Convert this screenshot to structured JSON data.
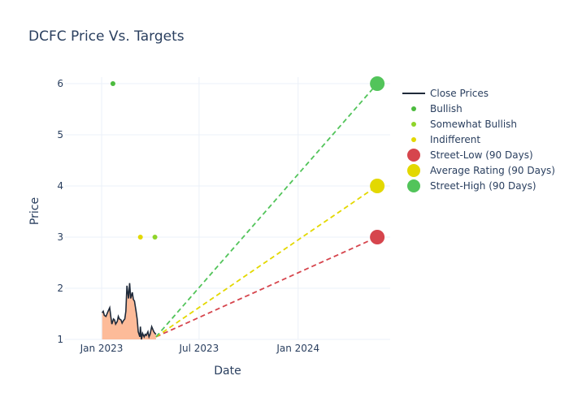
{
  "chart_data": {
    "type": "line+scatter",
    "title": "DCFC Price Vs. Targets",
    "xlabel": "Date",
    "ylabel": "Price",
    "ylim": [
      1,
      6
    ],
    "yticks": [
      1,
      2,
      3,
      4,
      5,
      6
    ],
    "xticks": [
      {
        "date": "2023-01-01",
        "label": "Jan 2023"
      },
      {
        "date": "2023-07-01",
        "label": "Jul 2023"
      },
      {
        "date": "2024-01-01",
        "label": "Jan 2024"
      }
    ],
    "xrange": [
      "2022-10-25",
      "2024-06-20"
    ],
    "close_prices": {
      "name": "Close Prices",
      "color": "#1f2a3a",
      "fill_color": "#fdbb99",
      "points": [
        [
          "2023-01-02",
          1.52
        ],
        [
          "2023-01-04",
          1.55
        ],
        [
          "2023-01-06",
          1.47
        ],
        [
          "2023-01-09",
          1.45
        ],
        [
          "2023-01-11",
          1.5
        ],
        [
          "2023-01-13",
          1.55
        ],
        [
          "2023-01-16",
          1.62
        ],
        [
          "2023-01-18",
          1.45
        ],
        [
          "2023-01-20",
          1.3
        ],
        [
          "2023-01-23",
          1.4
        ],
        [
          "2023-01-25",
          1.38
        ],
        [
          "2023-01-27",
          1.3
        ],
        [
          "2023-01-30",
          1.35
        ],
        [
          "2023-02-01",
          1.45
        ],
        [
          "2023-02-03",
          1.4
        ],
        [
          "2023-02-06",
          1.38
        ],
        [
          "2023-02-08",
          1.32
        ],
        [
          "2023-02-10",
          1.36
        ],
        [
          "2023-02-13",
          1.4
        ],
        [
          "2023-02-15",
          1.55
        ],
        [
          "2023-02-17",
          2.05
        ],
        [
          "2023-02-20",
          1.8
        ],
        [
          "2023-02-22",
          2.1
        ],
        [
          "2023-02-24",
          1.8
        ],
        [
          "2023-02-27",
          1.92
        ],
        [
          "2023-03-01",
          1.78
        ],
        [
          "2023-03-03",
          1.75
        ],
        [
          "2023-03-06",
          1.55
        ],
        [
          "2023-03-08",
          1.4
        ],
        [
          "2023-03-10",
          1.15
        ],
        [
          "2023-03-13",
          1.05
        ],
        [
          "2023-03-14",
          1.25
        ],
        [
          "2023-03-16",
          1.0
        ],
        [
          "2023-03-18",
          1.12
        ],
        [
          "2023-03-21",
          1.05
        ],
        [
          "2023-03-23",
          1.1
        ],
        [
          "2023-03-25",
          1.08
        ],
        [
          "2023-03-28",
          1.15
        ],
        [
          "2023-03-30",
          1.05
        ],
        [
          "2023-04-01",
          1.1
        ],
        [
          "2023-04-04",
          1.25
        ],
        [
          "2023-04-06",
          1.2
        ],
        [
          "2023-04-08",
          1.15
        ],
        [
          "2023-04-10",
          1.12
        ],
        [
          "2023-04-12",
          1.1
        ]
      ]
    },
    "series": [
      {
        "name": "Bullish",
        "color": "#4cbb3e",
        "points": [
          [
            "2023-01-22",
            6.0
          ]
        ]
      },
      {
        "name": "Somewhat Bullish",
        "color": "#8fd42a",
        "points": [
          [
            "2023-04-10",
            3.0
          ]
        ]
      },
      {
        "name": "Indifferent",
        "color": "#e3d800",
        "points": [
          [
            "2023-03-14",
            3.0
          ]
        ]
      }
    ],
    "targets": [
      {
        "name": "Street-Low (90 Days)",
        "color": "#d6454d",
        "start": [
          "2023-04-12",
          1.05
        ],
        "end": [
          "2024-05-27",
          3.0
        ]
      },
      {
        "name": "Average Rating (90 Days)",
        "color": "#e3d800",
        "start": [
          "2023-04-12",
          1.05
        ],
        "end": [
          "2024-05-27",
          4.0
        ]
      },
      {
        "name": "Street-High (90 Days)",
        "color": "#52c45a",
        "start": [
          "2023-04-12",
          1.05
        ],
        "end": [
          "2024-05-27",
          6.0
        ]
      }
    ],
    "legend": {
      "placement": "right",
      "items": [
        {
          "label": "Close Prices",
          "kind": "line",
          "color": "#1f2a3a"
        },
        {
          "label": "Bullish",
          "kind": "dot",
          "color": "#4cbb3e"
        },
        {
          "label": "Somewhat Bullish",
          "kind": "dot",
          "color": "#8fd42a"
        },
        {
          "label": "Indifferent",
          "kind": "dot",
          "color": "#e3d800"
        },
        {
          "label": "Street-Low (90 Days)",
          "kind": "big",
          "color": "#d6454d"
        },
        {
          "label": "Average Rating (90 Days)",
          "kind": "big",
          "color": "#e3d800"
        },
        {
          "label": "Street-High (90 Days)",
          "kind": "big",
          "color": "#52c45a"
        }
      ]
    }
  }
}
